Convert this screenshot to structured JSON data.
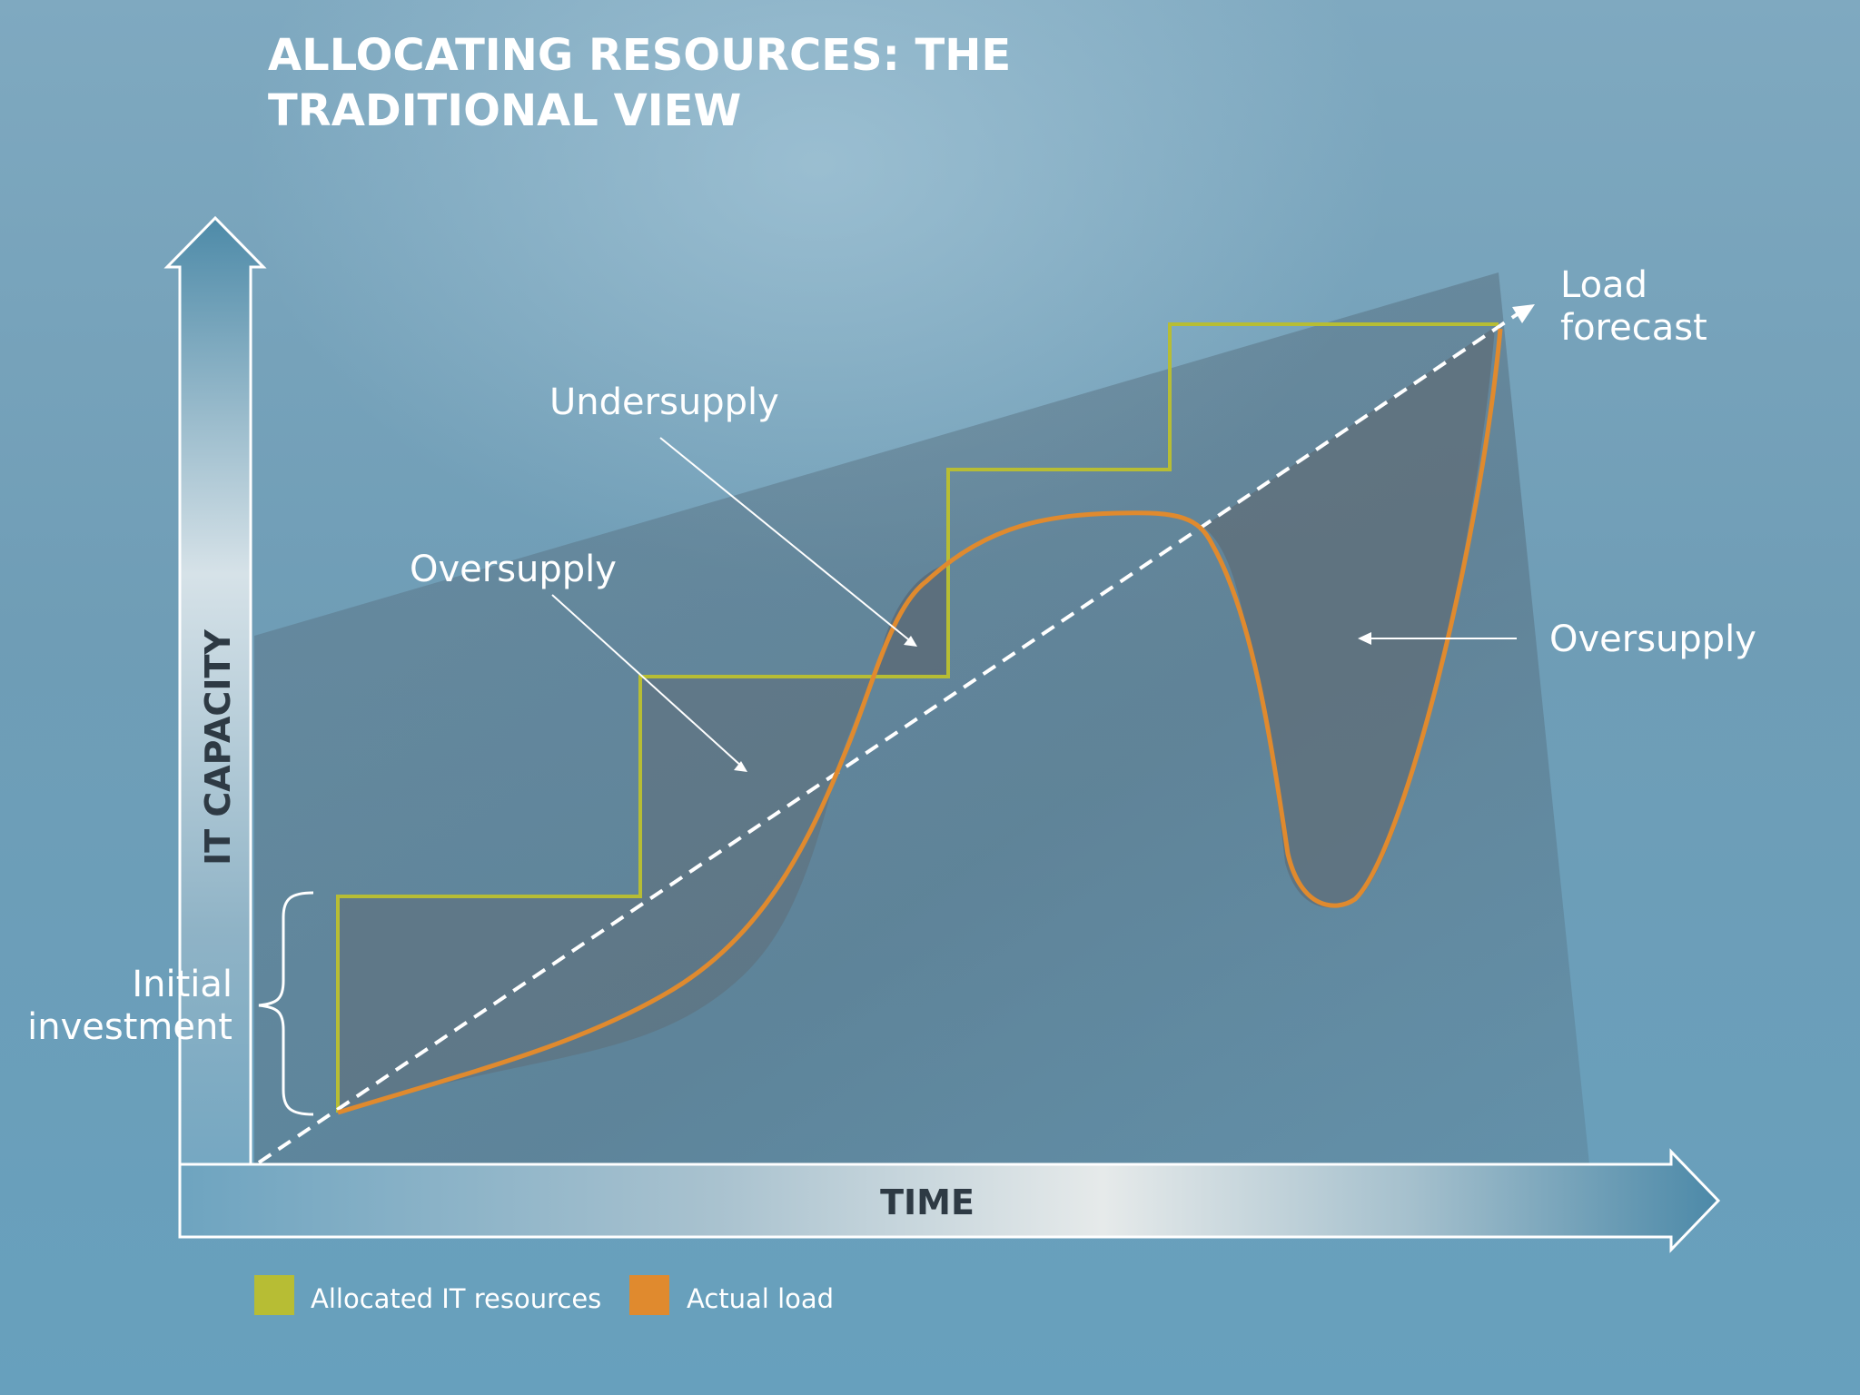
{
  "title": {
    "line1": "ALLOCATING RESOURCES: THE",
    "line2": "TRADITIONAL VIEW"
  },
  "axes": {
    "y_label": "IT CAPACITY",
    "x_label": "TIME"
  },
  "annotations": {
    "undersupply": "Undersupply",
    "oversupply_left": "Oversupply",
    "oversupply_right": "Oversupply",
    "load_forecast_line1": "Load",
    "load_forecast_line2": "forecast",
    "initial_investment_line1": "Initial",
    "initial_investment_line2": "investment"
  },
  "legend": {
    "allocated_label": "Allocated IT resources",
    "actual_label": "Actual load"
  },
  "colors": {
    "allocated": "#b7bd34",
    "actual_load": "#e08a2e",
    "forecast": "#ffffff",
    "shaded_area": "#5f6d78"
  }
}
